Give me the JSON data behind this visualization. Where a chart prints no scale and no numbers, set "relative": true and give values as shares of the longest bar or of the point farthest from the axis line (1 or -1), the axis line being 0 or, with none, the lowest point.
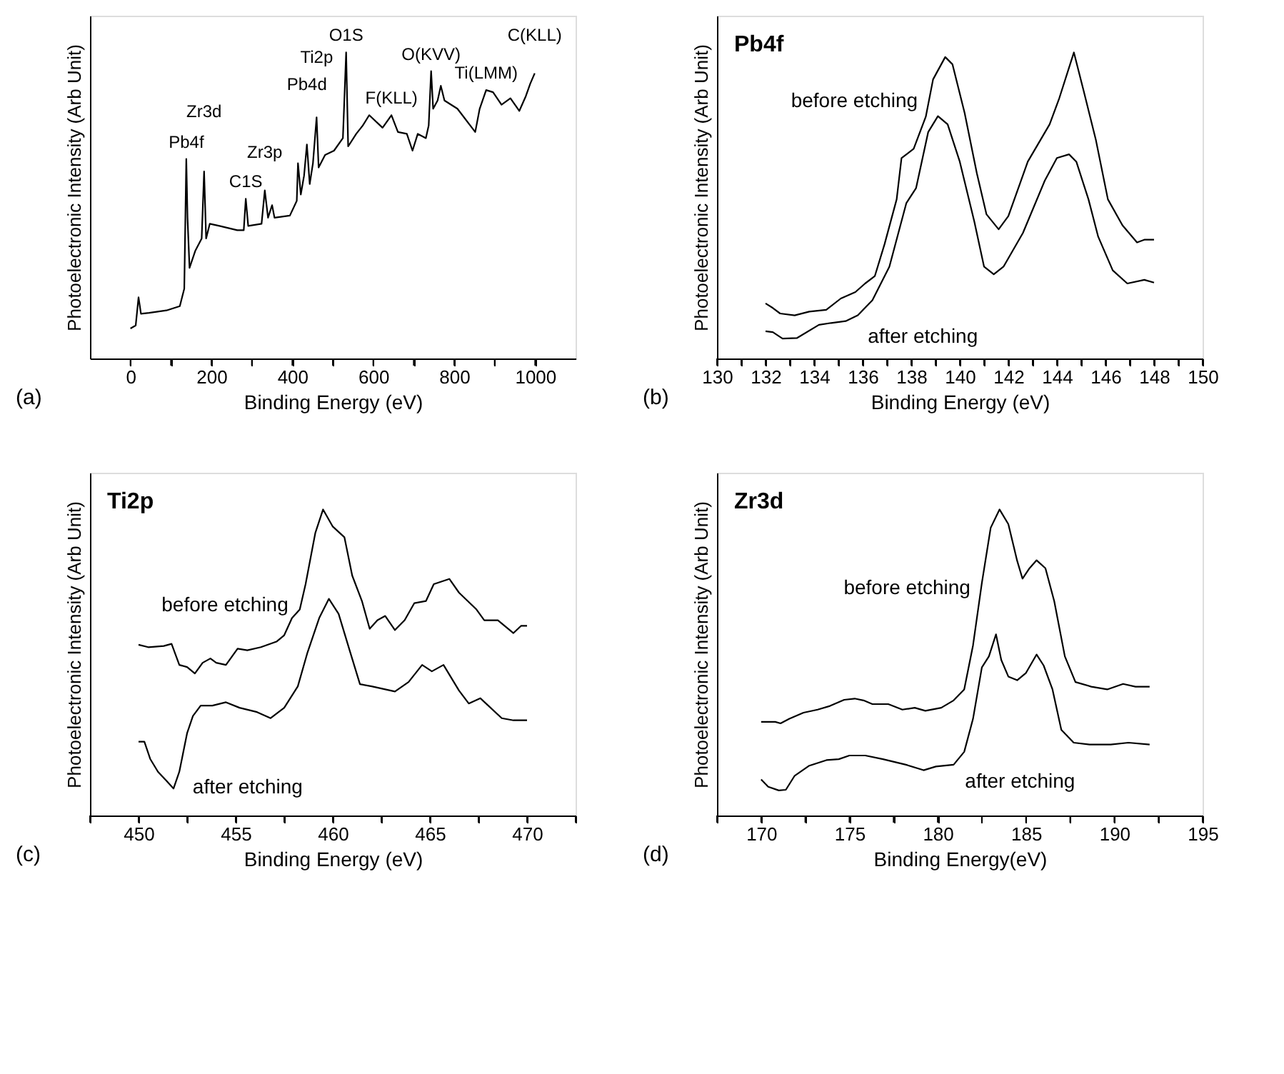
{
  "chart_data": [
    {
      "type": "line",
      "relative": true,
      "xlabel": "Binding Energy (eV)",
      "ylabel": "Photoelectronic Intensity (Arb Unit)",
      "tick_labels": "x",
      "xlim": [
        -100,
        1100
      ],
      "xticks": [
        0,
        {
          "value": 100,
          "label": null
        },
        200,
        {
          "value": 300,
          "label": null
        },
        400,
        {
          "value": 500,
          "label": null
        },
        600,
        {
          "value": 700,
          "label": null
        },
        800,
        {
          "value": 900,
          "label": null
        },
        1000
      ],
      "series": [
        {
          "color": "#000000",
          "x": [
            0,
            13,
            20,
            26,
            46,
            89,
            122,
            133,
            138,
            141,
            146,
            160,
            176,
            182,
            187,
            196,
            220,
            264,
            280,
            285,
            291,
            324,
            332,
            340,
            350,
            356,
            394,
            411,
            414,
            421,
            429,
            436,
            443,
            451,
            460,
            465,
            481,
            503,
            525,
            533,
            538,
            558,
            574,
            590,
            623,
            645,
            661,
            683,
            697,
            710,
            730,
            737,
            743,
            748,
            759,
            767,
            776,
            808,
            852,
            863,
            879,
            896,
            917,
            939,
            961,
            977,
            988,
            999
          ],
          "values": [
            0.098,
            0.108,
            0.2,
            0.146,
            0.149,
            0.157,
            0.171,
            0.228,
            0.652,
            0.46,
            0.296,
            0.351,
            0.392,
            0.611,
            0.392,
            0.44,
            0.433,
            0.419,
            0.419,
            0.522,
            0.433,
            0.44,
            0.549,
            0.46,
            0.501,
            0.46,
            0.467,
            0.515,
            0.638,
            0.536,
            0.597,
            0.699,
            0.57,
            0.638,
            0.788,
            0.624,
            0.665,
            0.679,
            0.72,
            1.0,
            0.693,
            0.734,
            0.761,
            0.795,
            0.754,
            0.795,
            0.74,
            0.734,
            0.679,
            0.734,
            0.72,
            0.761,
            0.939,
            0.816,
            0.843,
            0.891,
            0.843,
            0.816,
            0.74,
            0.816,
            0.877,
            0.87,
            0.829,
            0.85,
            0.809,
            0.857,
            0.898,
            0.932
          ]
        }
      ],
      "annotations": [
        "(a)",
        {
          "text": "Pb4f",
          "x": 138,
          "y": 0.652
        },
        {
          "text": "Zr3d",
          "x": 182,
          "y": 0.611
        },
        {
          "text": "C1S",
          "x": 285,
          "y": 0.522
        },
        {
          "text": "Zr3p",
          "x": 332,
          "y": 0.549
        },
        {
          "text": "Pb4d",
          "x": 436,
          "y": 0.699
        },
        {
          "text": "Ti2p",
          "x": 460,
          "y": 0.788
        },
        {
          "text": "O1S",
          "x": 533,
          "y": 1.0
        },
        {
          "text": "F(KLL)",
          "x": 645,
          "y": 0.795
        },
        {
          "text": "O(KVV)",
          "x": 743,
          "y": 0.939
        },
        {
          "text": "Ti(LMM)",
          "x": 879,
          "y": 0.877
        },
        {
          "text": "C(KLL)",
          "x": 999,
          "y": 0.932
        }
      ]
    },
    {
      "type": "line",
      "relative": true,
      "title": "Pb4f",
      "xlabel": "Binding Energy (eV)",
      "ylabel": "Photoelectronic Intensity (Arb Unit)",
      "tick_labels": "x",
      "xlim": [
        130,
        150
      ],
      "xticks": [
        130,
        {
          "value": 131,
          "label": null
        },
        132,
        {
          "value": 133,
          "label": null
        },
        134,
        {
          "value": 135,
          "label": null
        },
        136,
        {
          "value": 137,
          "label": null
        },
        138,
        {
          "value": 139,
          "label": null
        },
        140,
        {
          "value": 141,
          "label": null
        },
        142,
        {
          "value": 143,
          "label": null
        },
        144,
        {
          "value": 145,
          "label": null
        },
        146,
        {
          "value": 147,
          "label": null
        },
        148,
        {
          "value": 149,
          "label": null
        },
        150
      ],
      "series": [
        {
          "color": "#000000",
          "x": [
            132.0,
            132.3,
            132.6,
            133.2,
            133.8,
            134.5,
            135.1,
            135.7,
            136.1,
            136.5,
            136.9,
            137.4,
            137.6,
            138.1,
            138.6,
            138.9,
            139.4,
            139.7,
            140.2,
            140.7,
            141.1,
            141.6,
            142.0,
            142.8,
            143.7,
            144.1,
            144.7,
            145.1,
            145.6,
            146.1,
            146.7,
            147.3,
            147.6,
            148.0
          ],
          "values": [
            0.18,
            0.165,
            0.147,
            0.141,
            0.153,
            0.159,
            0.196,
            0.217,
            0.245,
            0.269,
            0.373,
            0.52,
            0.655,
            0.685,
            0.79,
            0.912,
            0.985,
            0.961,
            0.802,
            0.606,
            0.471,
            0.422,
            0.465,
            0.643,
            0.765,
            0.851,
            1.0,
            0.875,
            0.716,
            0.52,
            0.435,
            0.379,
            0.388,
            0.388
          ]
        },
        {
          "color": "#000000",
          "x": [
            132.0,
            132.3,
            132.7,
            133.3,
            134.2,
            134.7,
            135.3,
            135.8,
            136.4,
            137.1,
            137.8,
            138.2,
            138.7,
            139.1,
            139.5,
            140.0,
            140.6,
            141.0,
            141.4,
            141.8,
            142.6,
            143.5,
            144.0,
            144.5,
            144.8,
            145.3,
            145.7,
            146.3,
            146.9,
            147.6,
            148.0
          ],
          "values": [
            0.089,
            0.086,
            0.065,
            0.067,
            0.11,
            0.116,
            0.122,
            0.141,
            0.19,
            0.3,
            0.508,
            0.557,
            0.74,
            0.792,
            0.765,
            0.643,
            0.447,
            0.3,
            0.275,
            0.3,
            0.41,
            0.581,
            0.655,
            0.667,
            0.643,
            0.52,
            0.398,
            0.288,
            0.245,
            0.257,
            0.248
          ]
        }
      ],
      "annotations": [
        "(b)",
        {
          "text": "before etching",
          "x": 138.74,
          "y": 0.841
        },
        {
          "text": "after etching",
          "x": 135.74,
          "y": 0.126
        }
      ]
    },
    {
      "type": "line",
      "relative": true,
      "title": "Ti2p",
      "xlabel": "Binding Energy (eV)",
      "ylabel": "Photoelectronic Intensity (Arb Unit)",
      "tick_labels": "x",
      "xlim": [
        447.5,
        472.5
      ],
      "xticks": [
        {
          "value": 447.5,
          "label": null
        },
        450,
        {
          "value": 452.5,
          "label": null
        },
        455,
        {
          "value": 457.5,
          "label": null
        },
        460,
        {
          "value": 462.5,
          "label": null
        },
        465,
        {
          "value": 467.5,
          "label": null
        },
        470,
        {
          "value": 472.5,
          "label": null
        }
      ],
      "series": [
        {
          "color": "#000000",
          "x": [
            450.0,
            450.5,
            451.3,
            451.7,
            452.1,
            452.5,
            452.9,
            453.3,
            453.7,
            454.0,
            454.5,
            455.1,
            455.6,
            456.3,
            457.1,
            457.5,
            457.9,
            458.3,
            458.6,
            459.1,
            459.5,
            460.0,
            460.6,
            461.0,
            461.5,
            461.9,
            462.3,
            462.7,
            463.2,
            463.7,
            464.2,
            464.8,
            465.2,
            466.0,
            466.5,
            467.4,
            467.8,
            468.5,
            469.3,
            469.7,
            470.0
          ],
          "values": [
            0.558,
            0.55,
            0.554,
            0.561,
            0.492,
            0.485,
            0.464,
            0.499,
            0.513,
            0.499,
            0.492,
            0.545,
            0.54,
            0.55,
            0.568,
            0.589,
            0.645,
            0.673,
            0.756,
            0.923,
            1.0,
            0.944,
            0.909,
            0.784,
            0.701,
            0.61,
            0.638,
            0.652,
            0.606,
            0.638,
            0.694,
            0.701,
            0.756,
            0.773,
            0.728,
            0.673,
            0.638,
            0.638,
            0.596,
            0.62,
            0.62
          ]
        },
        {
          "color": "#000000",
          "x": [
            450.0,
            450.3,
            450.6,
            451.0,
            451.5,
            451.8,
            452.1,
            452.5,
            452.8,
            453.2,
            453.8,
            454.5,
            455.2,
            456.1,
            456.8,
            457.5,
            458.2,
            458.7,
            459.3,
            459.8,
            460.3,
            460.9,
            461.4,
            462.0,
            463.2,
            463.9,
            464.6,
            465.1,
            465.7,
            466.5,
            467.0,
            467.6,
            468.7,
            469.3,
            470.0
          ],
          "values": [
            0.241,
            0.241,
            0.185,
            0.143,
            0.109,
            0.088,
            0.143,
            0.269,
            0.325,
            0.359,
            0.359,
            0.37,
            0.352,
            0.338,
            0.318,
            0.352,
            0.422,
            0.533,
            0.645,
            0.708,
            0.659,
            0.533,
            0.429,
            0.422,
            0.405,
            0.436,
            0.492,
            0.471,
            0.492,
            0.408,
            0.366,
            0.383,
            0.318,
            0.311,
            0.311
          ]
        }
      ],
      "annotations": [
        "(c)",
        {
          "text": "before etching",
          "x": 458.3,
          "y": 0.687
        },
        {
          "text": "after etching",
          "x": 452.2,
          "y": 0.146
        }
      ]
    },
    {
      "type": "line",
      "relative": true,
      "title": "Zr3d",
      "xlabel": "Binding Energy(eV)",
      "ylabel": "Photoelectronic Intensity (Arb Unit)",
      "tick_labels": "x",
      "xlim": [
        167.5,
        195
      ],
      "xticks": [
        {
          "value": 167.5,
          "label": null
        },
        170,
        {
          "value": 172.5,
          "label": null
        },
        175,
        {
          "value": 177.5,
          "label": null
        },
        180,
        {
          "value": 182.5,
          "label": null
        },
        185,
        {
          "value": 187.5,
          "label": null
        },
        190,
        {
          "value": 192.5,
          "label": null
        },
        195
      ],
      "series": [
        {
          "color": "#000000",
          "x": [
            170.0,
            170.8,
            171.1,
            171.6,
            172.4,
            173.2,
            173.9,
            174.7,
            175.3,
            175.8,
            176.3,
            177.2,
            178.0,
            178.7,
            179.3,
            180.2,
            180.9,
            181.5,
            182.0,
            182.5,
            183.0,
            183.5,
            184.0,
            184.5,
            184.8,
            185.2,
            185.6,
            186.1,
            186.6,
            187.2,
            187.8,
            188.7,
            189.6,
            190.5,
            191.2,
            192.0
          ],
          "values": [
            0.306,
            0.306,
            0.301,
            0.316,
            0.336,
            0.346,
            0.358,
            0.378,
            0.382,
            0.376,
            0.364,
            0.364,
            0.346,
            0.352,
            0.342,
            0.352,
            0.376,
            0.412,
            0.556,
            0.76,
            0.94,
            1.0,
            0.952,
            0.832,
            0.774,
            0.808,
            0.834,
            0.808,
            0.7,
            0.52,
            0.436,
            0.421,
            0.412,
            0.43,
            0.421,
            0.421
          ]
        },
        {
          "color": "#000000",
          "x": [
            170.0,
            170.4,
            171.0,
            171.4,
            171.9,
            172.7,
            173.7,
            174.4,
            175.0,
            175.9,
            176.9,
            178.2,
            179.2,
            179.9,
            180.9,
            181.5,
            182.0,
            182.5,
            182.9,
            183.3,
            183.6,
            184.0,
            184.5,
            185.0,
            185.6,
            186.0,
            186.5,
            187.0,
            187.7,
            188.6,
            189.8,
            190.8,
            192.0
          ],
          "values": [
            0.118,
            0.094,
            0.082,
            0.084,
            0.13,
            0.162,
            0.181,
            0.184,
            0.196,
            0.196,
            0.184,
            0.166,
            0.148,
            0.16,
            0.166,
            0.208,
            0.316,
            0.484,
            0.52,
            0.592,
            0.508,
            0.454,
            0.442,
            0.466,
            0.526,
            0.49,
            0.412,
            0.28,
            0.238,
            0.232,
            0.232,
            0.238,
            0.232
          ]
        }
      ],
      "annotations": [
        "(d)",
        {
          "text": "before etching",
          "x": 182.5,
          "y": 0.742
        },
        {
          "text": "after etching",
          "x": 180.9,
          "y": 0.166
        }
      ]
    }
  ]
}
